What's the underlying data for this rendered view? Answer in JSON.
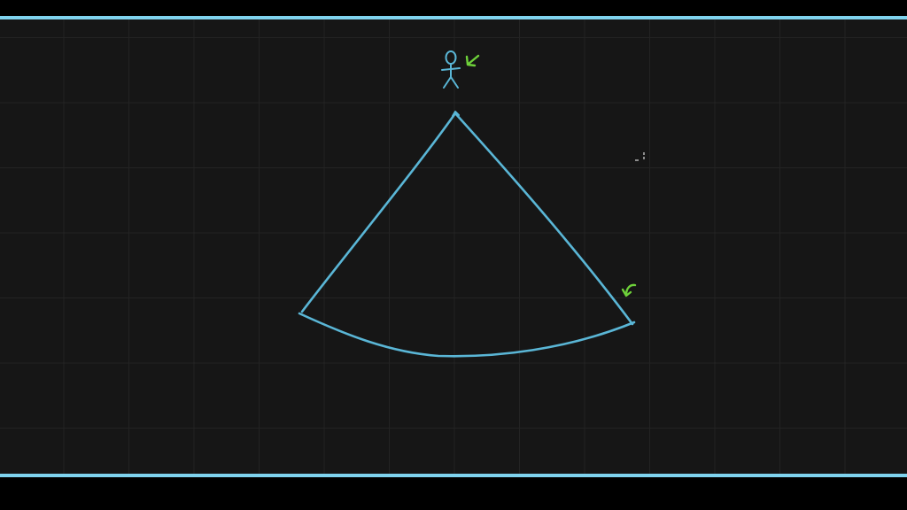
{
  "colors": {
    "background": "#161616",
    "grid": "#232323",
    "frame_bar": "#7fd3ee",
    "ink_blue": "#5ab6d6",
    "ink_green": "#6ed13a"
  },
  "icons": {
    "figure": "stick-figure-icon",
    "figure_arrow": "arrow-icon",
    "edge_arrow": "curved-arrow-icon",
    "cursor": "cursor-icon"
  }
}
